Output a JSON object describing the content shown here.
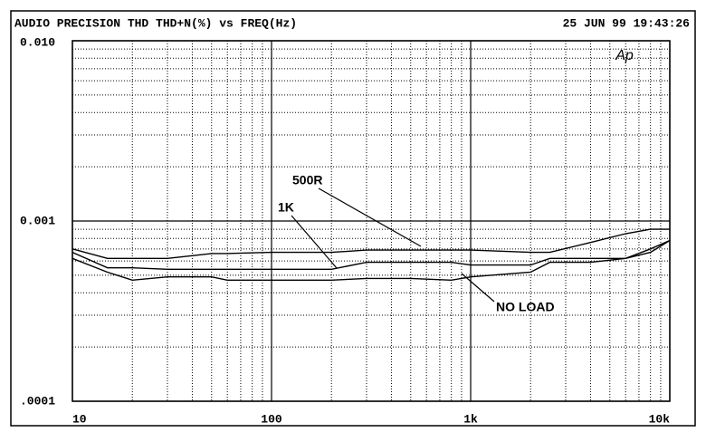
{
  "chart_data": {
    "type": "line",
    "title": "AUDIO PRECISION THD THD+N(%) vs FREQ(Hz)",
    "timestamp": "25 JUN 99 19:43:26",
    "logo": "Ap",
    "x": [
      10,
      15,
      20,
      30,
      50,
      60,
      100,
      200,
      300,
      500,
      800,
      1000,
      2000,
      2500,
      4000,
      6000,
      8000,
      10000
    ],
    "series": [
      {
        "name": "500R",
        "color": "#000000",
        "values": [
          0.0007,
          0.00062,
          0.00062,
          0.00062,
          0.00066,
          0.00066,
          0.00067,
          0.00067,
          0.00069,
          0.00069,
          0.00069,
          0.00069,
          0.00067,
          0.00067,
          0.00076,
          0.00085,
          0.0009,
          0.0009
        ]
      },
      {
        "name": "1K",
        "color": "#000000",
        "values": [
          0.00067,
          0.00055,
          0.00055,
          0.00054,
          0.00054,
          0.00054,
          0.00054,
          0.00054,
          0.00059,
          0.00059,
          0.00059,
          0.00057,
          0.00057,
          0.00062,
          0.00062,
          0.00062,
          0.00067,
          0.00078
        ]
      },
      {
        "name": "NO LOAD",
        "color": "#000000",
        "values": [
          0.00062,
          0.00052,
          0.00047,
          0.00049,
          0.00049,
          0.00047,
          0.00047,
          0.00047,
          0.00048,
          0.00048,
          0.00047,
          0.00049,
          0.00052,
          0.00059,
          0.00059,
          0.00062,
          0.0007,
          0.00078
        ]
      }
    ],
    "xlim": [
      10,
      10000
    ],
    "ylim": [
      0.0001,
      0.01
    ],
    "xticks": [
      10,
      100,
      {
        "value": 1000,
        "label": "1k"
      },
      {
        "value": 10000,
        "label": "10k"
      }
    ],
    "yticks": [
      {
        "value": 0.0001,
        "label": ".0001"
      },
      0.001,
      {
        "value": 0.01,
        "label": "0.010"
      }
    ],
    "xscale": "log",
    "yscale": "log",
    "grid": true,
    "minor_grid": true
  }
}
